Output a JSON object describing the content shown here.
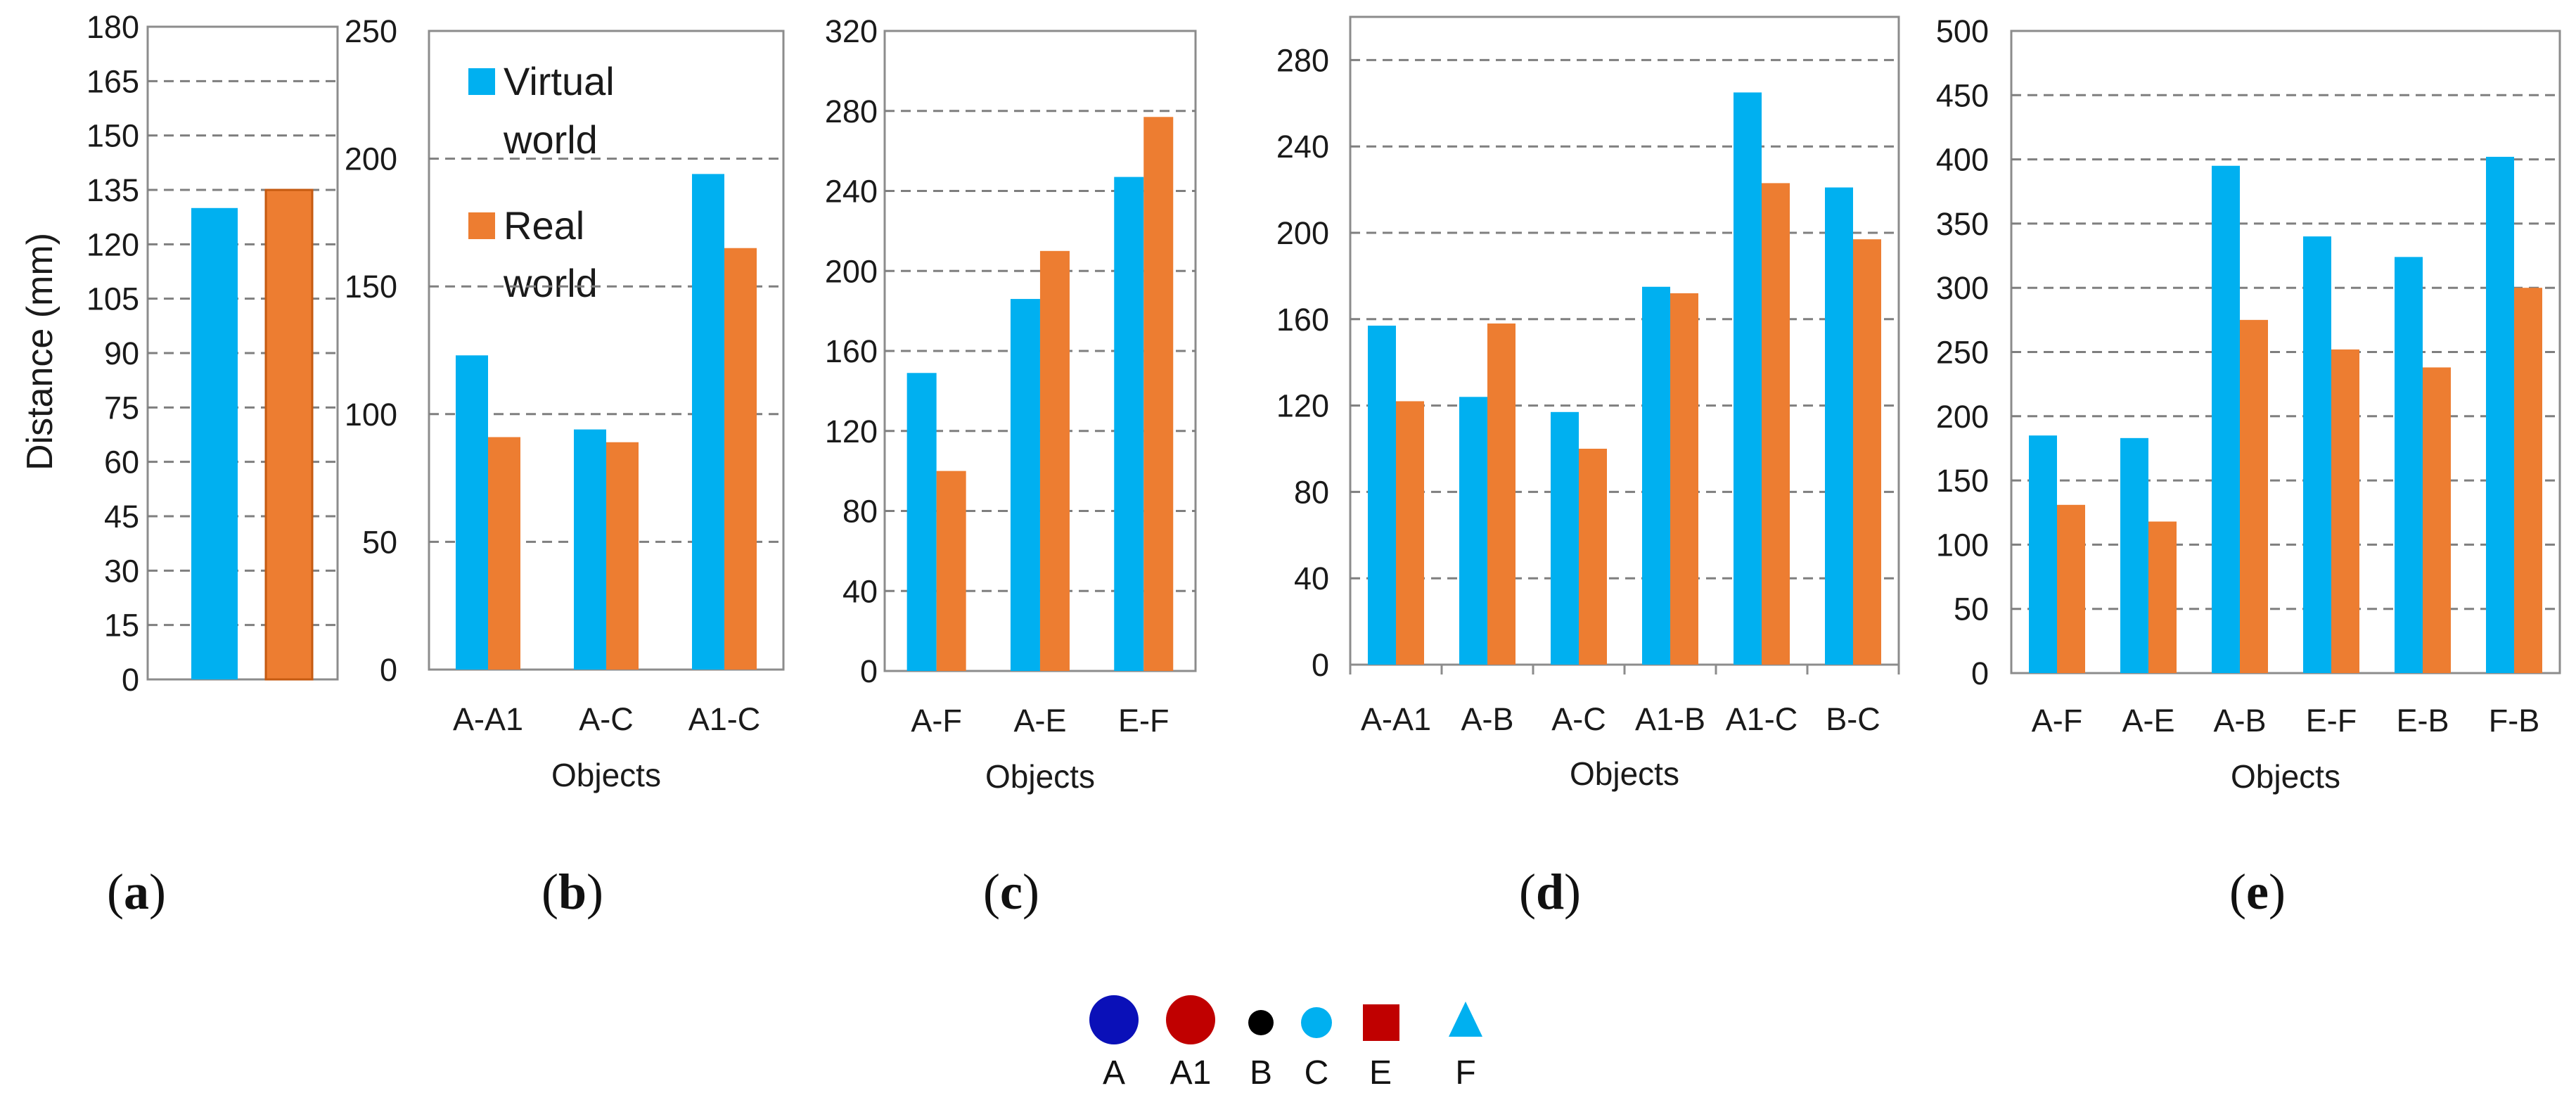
{
  "colors": {
    "virtual": "#00B0F0",
    "real": "#ED7D31",
    "grid": "#7f7f7f",
    "frame": "#8c8c8c"
  },
  "chart_data": [
    {
      "panel": "(a)",
      "type": "bar",
      "ylabel": "Distance (mm)",
      "xlabel": "",
      "ylim": [
        0,
        180
      ],
      "ticks": [
        0,
        15,
        30,
        45,
        60,
        75,
        90,
        105,
        120,
        135,
        150,
        165,
        180
      ],
      "categories": [
        ""
      ],
      "series": [
        {
          "name": "Virtual world",
          "values": [
            130
          ]
        },
        {
          "name": "Real world",
          "values": [
            135
          ]
        }
      ]
    },
    {
      "panel": "(b)",
      "type": "bar",
      "ylabel": "",
      "xlabel": "Objects",
      "ylim": [
        0,
        250
      ],
      "ticks": [
        0,
        50,
        100,
        150,
        200,
        250
      ],
      "categories": [
        "A-A1",
        "A-C",
        "A1-C"
      ],
      "series": [
        {
          "name": "Virtual world",
          "values": [
            123,
            94,
            194
          ]
        },
        {
          "name": "Real world",
          "values": [
            91,
            89,
            165
          ]
        }
      ]
    },
    {
      "panel": "(c)",
      "type": "bar",
      "ylabel": "",
      "xlabel": "Objects",
      "ylim": [
        0,
        320
      ],
      "ticks": [
        0,
        40,
        80,
        120,
        160,
        200,
        240,
        280,
        320
      ],
      "categories": [
        "A-F",
        "A-E",
        "E-F"
      ],
      "series": [
        {
          "name": "Virtual world",
          "values": [
            149,
            186,
            247
          ]
        },
        {
          "name": "Real world",
          "values": [
            100,
            210,
            277
          ]
        }
      ]
    },
    {
      "panel": "(d)",
      "type": "bar",
      "ylabel": "",
      "xlabel": "Objects",
      "ylim": [
        0,
        300
      ],
      "ticks": [
        0,
        40,
        80,
        120,
        160,
        200,
        240,
        280
      ],
      "categories": [
        "A-A1",
        "A-B",
        "A-C",
        "A1-B",
        "A1-C",
        "B-C"
      ],
      "series": [
        {
          "name": "Virtual world",
          "values": [
            157,
            124,
            117,
            175,
            265,
            221
          ]
        },
        {
          "name": "Real world",
          "values": [
            122,
            158,
            100,
            172,
            223,
            197
          ]
        }
      ]
    },
    {
      "panel": "(e)",
      "type": "bar",
      "ylabel": "",
      "xlabel": "Objects",
      "ylim": [
        0,
        500
      ],
      "ticks": [
        0,
        50,
        100,
        150,
        200,
        250,
        300,
        350,
        400,
        450,
        500
      ],
      "categories": [
        "A-F",
        "A-E",
        "A-B",
        "E-F",
        "E-B",
        "F-B"
      ],
      "series": [
        {
          "name": "Virtual world",
          "values": [
            185,
            183,
            395,
            340,
            324,
            402
          ]
        },
        {
          "name": "Real world",
          "values": [
            131,
            118,
            275,
            252,
            238,
            300
          ]
        }
      ]
    }
  ],
  "legend": [
    "Virtual",
    "world",
    "Real",
    "world"
  ],
  "marker_legend": [
    {
      "label": "A",
      "shape": "large-circle",
      "color": "#0A10B8"
    },
    {
      "label": "A1",
      "shape": "large-circle",
      "color": "#C00000"
    },
    {
      "label": "B",
      "shape": "small-circle",
      "color": "#000000"
    },
    {
      "label": "C",
      "shape": "small-circle",
      "color": "#00B0F0"
    },
    {
      "label": "E",
      "shape": "square",
      "color": "#C00000"
    },
    {
      "label": "F",
      "shape": "triangle",
      "color": "#00B0F0"
    }
  ]
}
